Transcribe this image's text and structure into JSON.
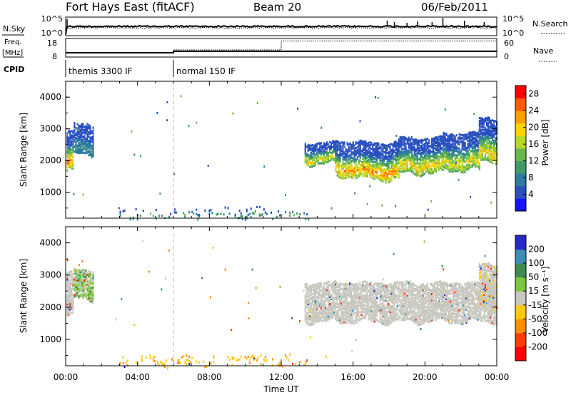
{
  "header": {
    "station": "Fort Hays East (fitACF)",
    "beam": "Beam 20",
    "date": "06/Feb/2011"
  },
  "strips": {
    "nsky": {
      "label": "N.Sky",
      "ticks": [
        "10^5",
        "10^0"
      ],
      "right_ticks": [
        "10^5",
        "10^0"
      ],
      "right_label": "N.Search"
    },
    "freq": {
      "label_top": "Freq.",
      "label_bottom": "[MHz]",
      "ticks": [
        "18",
        "8"
      ],
      "right_ticks": [
        "60",
        "0"
      ],
      "right_label": "Nave",
      "freq_mhz": [
        {
          "t": 0.0,
          "v": 10.3
        },
        {
          "t": 6.0,
          "v": 11.1
        },
        {
          "t": 24.0,
          "v": 11.1
        }
      ],
      "nave": [
        {
          "t": 0.0,
          "v": 14
        },
        {
          "t": 6.0,
          "v": 23
        },
        {
          "t": 12.0,
          "v": 52
        },
        {
          "t": 24.0,
          "v": 52
        }
      ]
    },
    "cpid": {
      "label": "CPID",
      "segments": [
        {
          "start": 0.0,
          "end": 6.0,
          "label": "themis 3300 IF"
        },
        {
          "start": 6.0,
          "end": 24.0,
          "label": "normal 150 IF"
        }
      ]
    }
  },
  "colors": {
    "power": [
      "#1414ff",
      "#2a50c0",
      "#2f7aa0",
      "#3f9a6a",
      "#6ab84a",
      "#b8d82a",
      "#ffd200",
      "#ff9e00",
      "#ff5a00",
      "#ff0000"
    ],
    "velocity": [
      "#2828c8",
      "#3c8cb4",
      "#3c8c50",
      "#7cc83c",
      "#c8c8c0",
      "#ffc814",
      "#ff8c00",
      "#ff3c00",
      "#ff0000"
    ]
  },
  "chart_data": [
    {
      "type": "heatmap",
      "name": "power",
      "xlabel": "",
      "ylabel": "Slant Range [km]",
      "xlim": [
        0,
        24
      ],
      "ylim": [
        180,
        4500
      ],
      "yticks": [
        1000,
        2000,
        3000,
        4000
      ],
      "colorbar": {
        "label": "Power [dB]",
        "ticks": [
          "28",
          "24",
          "20",
          "16",
          "12",
          "8",
          "4"
        ],
        "range": [
          0,
          30
        ]
      },
      "regions": [
        {
          "t0": 0.05,
          "t1": 0.45,
          "r_bottom": 1650,
          "r_top": 2900,
          "v_lo": 4,
          "v_hi": 28
        },
        {
          "t0": 0.45,
          "t1": 1.5,
          "r_bottom": 2200,
          "r_top": 3150,
          "v_lo": 4,
          "v_hi": 10
        },
        {
          "t0": 13.3,
          "t1": 15.0,
          "r_bottom": 1900,
          "r_top": 2550,
          "v_lo": 4,
          "v_hi": 22
        },
        {
          "t0": 15.0,
          "t1": 16.5,
          "r_bottom": 1500,
          "r_top": 2600,
          "v_lo": 4,
          "v_hi": 26
        },
        {
          "t0": 16.5,
          "t1": 18.5,
          "r_bottom": 1400,
          "r_top": 2550,
          "v_lo": 4,
          "v_hi": 28
        },
        {
          "t0": 18.5,
          "t1": 21.0,
          "r_bottom": 1600,
          "r_top": 2700,
          "v_lo": 4,
          "v_hi": 24
        },
        {
          "t0": 21.0,
          "t1": 23.0,
          "r_bottom": 1700,
          "r_top": 2850,
          "v_lo": 4,
          "v_hi": 22
        },
        {
          "t0": 23.0,
          "t1": 24.0,
          "r_bottom": 2000,
          "r_top": 3350,
          "v_lo": 4,
          "v_hi": 24
        },
        {
          "t0": 3.0,
          "t1": 13.5,
          "r_bottom": 180,
          "r_top": 480,
          "v_lo": 4,
          "v_hi": 14
        }
      ]
    },
    {
      "type": "heatmap",
      "name": "velocity",
      "xlabel": "Time UT",
      "ylabel": "Slant Range [km]",
      "xlim": [
        0,
        24
      ],
      "ylim": [
        180,
        4500
      ],
      "yticks": [
        1000,
        2000,
        3000,
        4000
      ],
      "xticks": [
        "00:00",
        "04:00",
        "08:00",
        "12:00",
        "16:00",
        "20:00",
        "00:00"
      ],
      "colorbar": {
        "label": "Velocity [m s⁻¹]",
        "ticks": [
          "200",
          "100",
          "50",
          "15",
          "-15",
          "-50",
          "-100",
          "-200"
        ],
        "range": [
          -250,
          250
        ]
      },
      "regions": [
        {
          "t0": 0.05,
          "t1": 0.45,
          "r_bottom": 1700,
          "r_top": 3050,
          "v_lo": -15,
          "v_hi": 15
        },
        {
          "t0": 0.45,
          "t1": 1.5,
          "r_bottom": 2250,
          "r_top": 3150,
          "v_lo": -15,
          "v_hi": 60
        },
        {
          "t0": 13.3,
          "t1": 24.0,
          "r_bottom": 1550,
          "r_top": 2750,
          "v_lo": -15,
          "v_hi": 15
        },
        {
          "t0": 23.0,
          "t1": 24.0,
          "r_bottom": 2000,
          "r_top": 3350,
          "v_lo": -20,
          "v_hi": 15
        },
        {
          "t0": 3.0,
          "t1": 13.5,
          "r_bottom": 180,
          "r_top": 480,
          "v_lo": -60,
          "v_hi": -15
        }
      ]
    }
  ]
}
